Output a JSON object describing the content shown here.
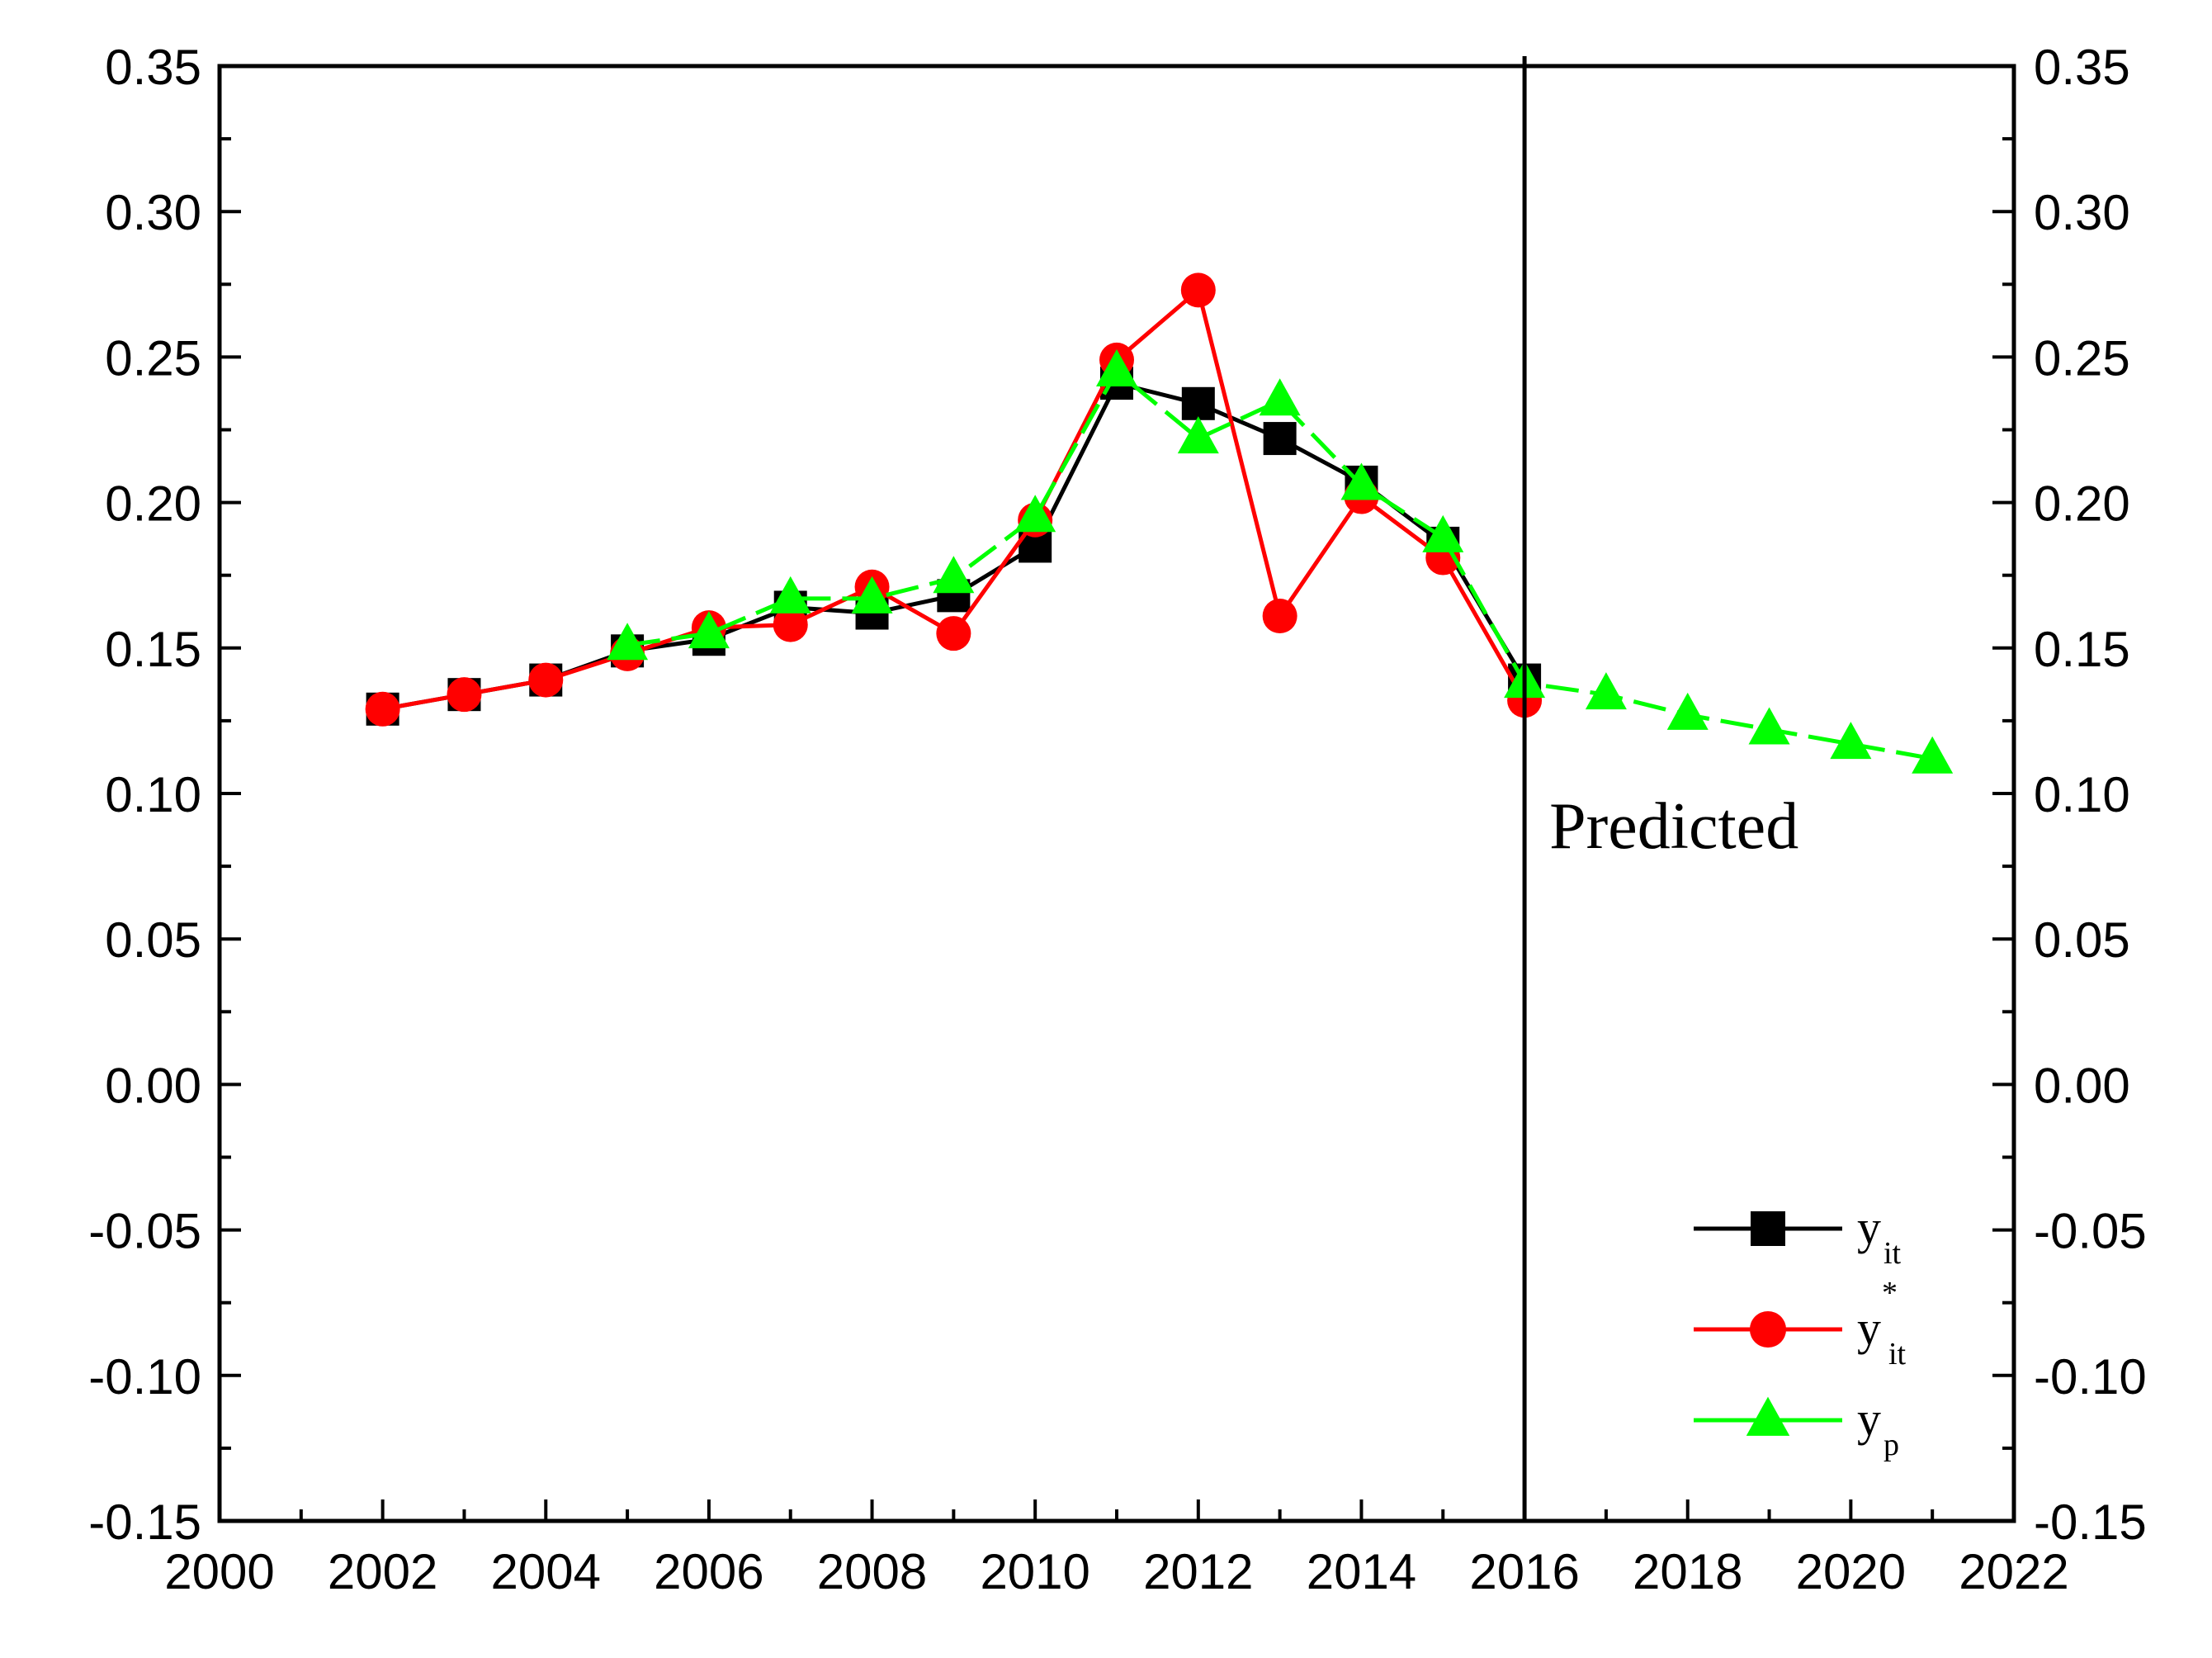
{
  "chart_data": {
    "type": "line",
    "title": "",
    "xlabel": "",
    "ylabel": "",
    "xlim": [
      2000,
      2022
    ],
    "ylim": [
      -0.15,
      0.35
    ],
    "x_ticks": [
      "2000",
      "2002",
      "2004",
      "2006",
      "2008",
      "2010",
      "2012",
      "2014",
      "2016",
      "2018",
      "2020",
      "2022"
    ],
    "y_ticks": [
      "-0.15",
      "-0.10",
      "-0.05",
      "0.00",
      "0.05",
      "0.10",
      "0.15",
      "0.20",
      "0.25",
      "0.30",
      "0.35"
    ],
    "grid": false,
    "legend_position": "bottom-right",
    "annotation": {
      "text": "Predicted",
      "divider_x": 2016
    },
    "series": [
      {
        "name": "y_it",
        "legend_main": "y",
        "legend_sub": "it",
        "legend_sup": "",
        "color": "#000000",
        "marker": "square",
        "dashed": false,
        "x": [
          2002,
          2003,
          2004,
          2005,
          2006,
          2007,
          2008,
          2009,
          2010,
          2011,
          2012,
          2013,
          2014,
          2015,
          2016
        ],
        "values": [
          0.129,
          0.134,
          0.139,
          0.149,
          0.153,
          0.164,
          0.162,
          0.168,
          0.185,
          0.241,
          0.234,
          0.222,
          0.207,
          0.186,
          0.139
        ]
      },
      {
        "name": "y*_it",
        "legend_main": "y",
        "legend_sub": "it",
        "legend_sup": "*",
        "color": "#ff0000",
        "marker": "circle",
        "dashed": false,
        "x": [
          2002,
          2003,
          2004,
          2005,
          2006,
          2007,
          2008,
          2009,
          2010,
          2011,
          2012,
          2013,
          2014,
          2015,
          2016
        ],
        "values": [
          0.129,
          0.134,
          0.139,
          0.148,
          0.157,
          0.158,
          0.171,
          0.155,
          0.194,
          0.249,
          0.273,
          0.161,
          0.202,
          0.181,
          0.132
        ]
      },
      {
        "name": "y_p",
        "legend_main": "y",
        "legend_sub": "p",
        "legend_sup": "",
        "color": "#00ff00",
        "marker": "triangle",
        "dashed": true,
        "x": [
          2005,
          2006,
          2007,
          2008,
          2009,
          2010,
          2011,
          2012,
          2013,
          2014,
          2015,
          2016,
          2017,
          2018,
          2019,
          2020,
          2021
        ],
        "values": [
          0.151,
          0.155,
          0.167,
          0.167,
          0.174,
          0.195,
          0.245,
          0.222,
          0.235,
          0.206,
          0.188,
          0.138,
          0.134,
          0.127,
          0.122,
          0.117,
          0.112
        ]
      }
    ]
  }
}
